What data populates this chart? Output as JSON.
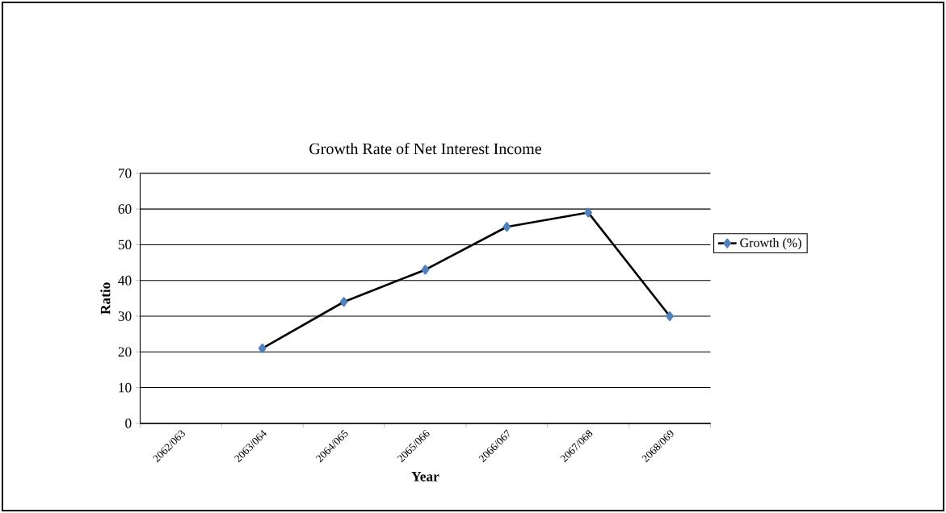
{
  "chart_data": {
    "type": "line",
    "title": "Growth Rate of Net Interest Income",
    "xlabel": "Year",
    "ylabel": "Ratio",
    "categories": [
      "2062/063",
      "2063/064",
      "2064/065",
      "2065/066",
      "2066/067",
      "2067/068",
      "2068/069"
    ],
    "series": [
      {
        "name": "Growth (%)",
        "color": "#000000",
        "values": [
          null,
          21,
          34,
          43,
          55,
          59,
          30
        ]
      }
    ],
    "ylim": [
      0,
      70
    ],
    "yticks": [
      0,
      10,
      20,
      30,
      40,
      50,
      60,
      70
    ],
    "grid": "y",
    "legend": "right",
    "marker": "diamond"
  }
}
